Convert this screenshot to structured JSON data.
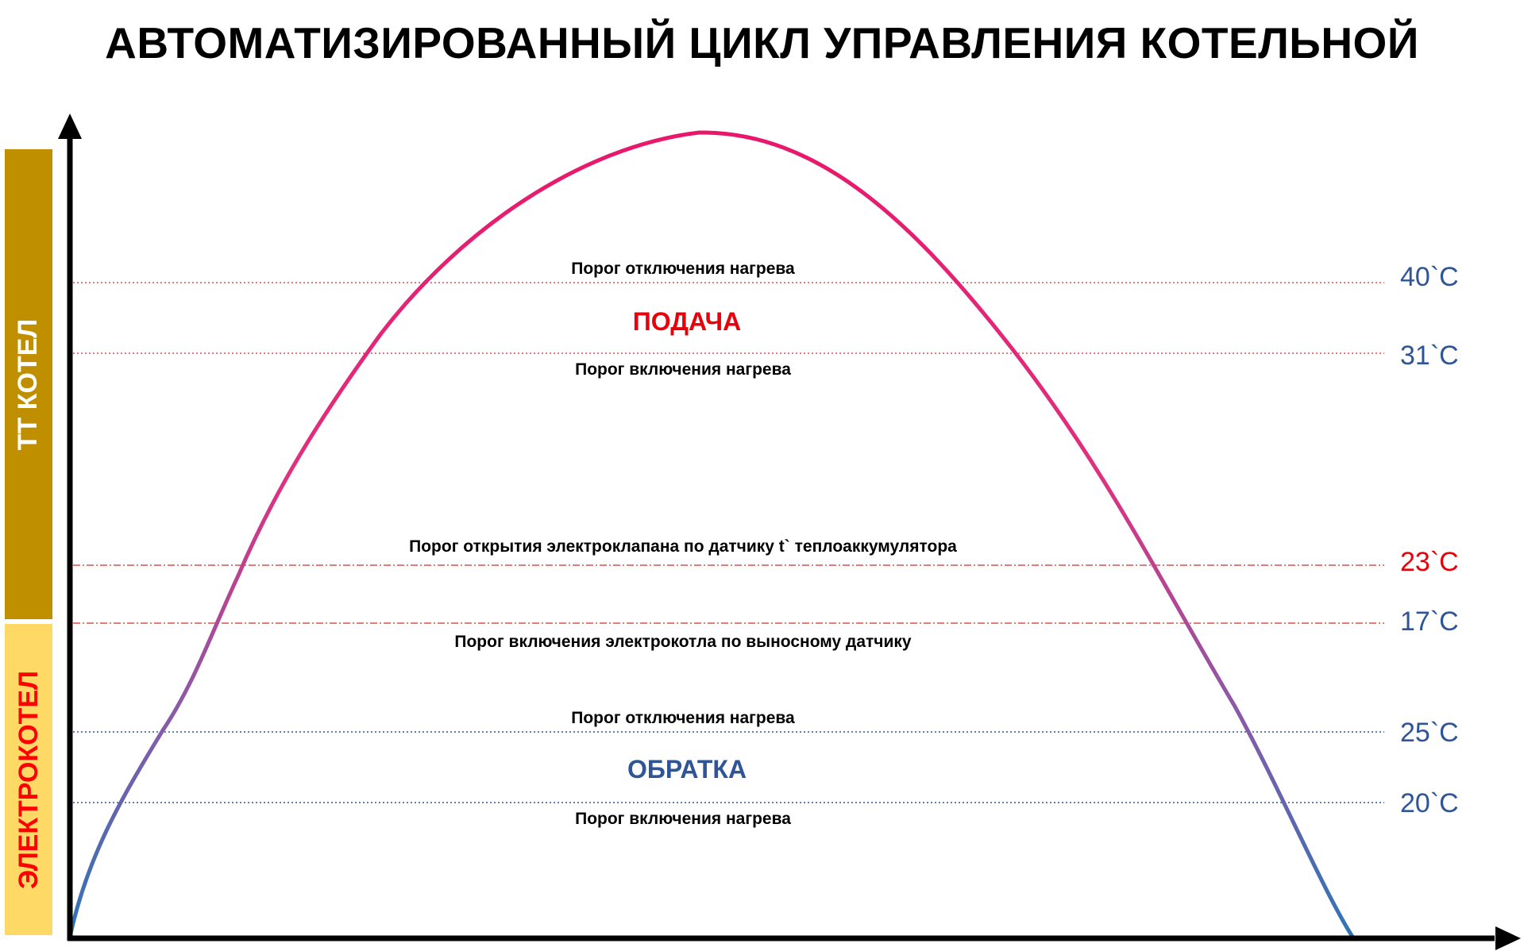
{
  "title": "АВТОМАТИЗИРОВАННЫЙ ЦИКЛ УПРАВЛЕНИЯ КОТЕЛЬНОЙ",
  "side_bars": {
    "tt": {
      "label": "ТТ КОТЕЛ",
      "color": "#bf8f00",
      "text_color": "#ffffff"
    },
    "electric": {
      "label": "ЭЛЕКТРОКОТЕЛ",
      "color": "#ffd966",
      "text_color": "#ff0000"
    }
  },
  "sections": {
    "supply": {
      "label": "ПОДАЧА",
      "color": "#e8000b"
    },
    "return": {
      "label": "ОБРАТКА",
      "color": "#2f5597"
    }
  },
  "thresholds": [
    {
      "id": "supply-off",
      "temp": "40`C",
      "label": "Порог отключения нагрева",
      "temp_color": "#2f5597",
      "line_color": "#d9534f",
      "line_style": "dotted"
    },
    {
      "id": "supply-on",
      "temp": "31`C",
      "label": "Порог включения нагрева",
      "temp_color": "#2f5597",
      "line_color": "#d9534f",
      "line_style": "dotted"
    },
    {
      "id": "valve-open",
      "temp": "23`C",
      "label": "Порог открытия электроклапана по датчику t` теплоаккумулятора",
      "temp_color": "#e8000b",
      "line_color": "#d9534f",
      "line_style": "dashdot"
    },
    {
      "id": "electric-on",
      "temp": "17`C",
      "label": "Порог включения электрокотла по выносному датчику",
      "temp_color": "#2f5597",
      "line_color": "#d9534f",
      "line_style": "dashdot"
    },
    {
      "id": "return-off",
      "temp": "25`C",
      "label": "Порог отключения нагрева",
      "temp_color": "#2f5597",
      "line_color": "#2f5597",
      "line_style": "dotted"
    },
    {
      "id": "return-on",
      "temp": "20`C",
      "label": "Порог включения нагрева",
      "temp_color": "#2f5597",
      "line_color": "#2f5597",
      "line_style": "dotted"
    }
  ],
  "curve": {
    "color_top": "#e8176b",
    "color_bottom": "#2e75b6"
  }
}
